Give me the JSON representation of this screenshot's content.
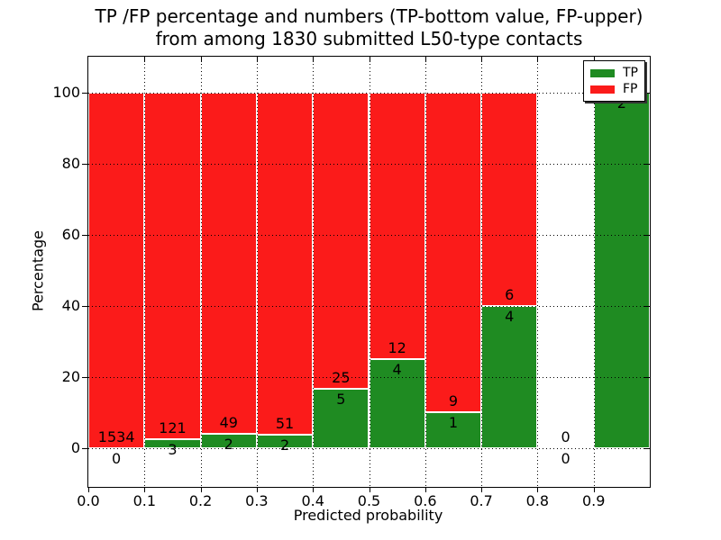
{
  "figure": {
    "title_line1": "TP /FP percentage and numbers (TP-bottom value, FP-upper)",
    "title_line2": "from among 1830 submitted L50-type contacts"
  },
  "chart_data": {
    "type": "bar",
    "stacked": true,
    "title": "TP /FP percentage and numbers (TP-bottom value, FP-upper) from among 1830 submitted L50-type contacts",
    "xlabel": "Predicted probability",
    "ylabel": "Percentage",
    "xlim": [
      0.0,
      1.0
    ],
    "ylim": [
      -11,
      110
    ],
    "grid": true,
    "x_ticks": [
      "0.0",
      "0.1",
      "0.2",
      "0.3",
      "0.4",
      "0.5",
      "0.6",
      "0.7",
      "0.8",
      "0.9"
    ],
    "y_ticks": [
      "0",
      "20",
      "40",
      "60",
      "80",
      "100"
    ],
    "colors": {
      "tp": "#1f8b22",
      "fp": "#fb1b1a"
    },
    "legend": {
      "position": "upper-right",
      "entries": [
        {
          "label": "TP",
          "color": "#1f8b22"
        },
        {
          "label": "FP",
          "color": "#fb1b1a"
        }
      ]
    },
    "bins": [
      {
        "range": [
          0.0,
          0.1
        ],
        "tp_pct": 0,
        "fp_pct": 100,
        "tp_label": "0",
        "fp_label": "1534",
        "empty": false
      },
      {
        "range": [
          0.1,
          0.2
        ],
        "tp_pct": 2.42,
        "fp_pct": 97.58,
        "tp_label": "3",
        "fp_label": "121",
        "empty": false
      },
      {
        "range": [
          0.2,
          0.3
        ],
        "tp_pct": 3.92,
        "fp_pct": 96.08,
        "tp_label": "2",
        "fp_label": "49",
        "empty": false
      },
      {
        "range": [
          0.3,
          0.4
        ],
        "tp_pct": 3.77,
        "fp_pct": 96.23,
        "tp_label": "2",
        "fp_label": "51",
        "empty": false
      },
      {
        "range": [
          0.4,
          0.5
        ],
        "tp_pct": 16.67,
        "fp_pct": 83.33,
        "tp_label": "5",
        "fp_label": "25",
        "empty": false
      },
      {
        "range": [
          0.5,
          0.6
        ],
        "tp_pct": 25,
        "fp_pct": 75,
        "tp_label": "4",
        "fp_label": "12",
        "empty": false
      },
      {
        "range": [
          0.6,
          0.7
        ],
        "tp_pct": 10,
        "fp_pct": 90,
        "tp_label": "1",
        "fp_label": "9",
        "empty": false
      },
      {
        "range": [
          0.7,
          0.8
        ],
        "tp_pct": 40,
        "fp_pct": 60,
        "tp_label": "4",
        "fp_label": "6",
        "empty": false
      },
      {
        "range": [
          0.8,
          0.9
        ],
        "tp_pct": 0,
        "fp_pct": 0,
        "tp_label": "0",
        "fp_label": "0",
        "empty": true
      },
      {
        "range": [
          0.9,
          1.0
        ],
        "tp_pct": 100,
        "fp_pct": 0,
        "tp_label": "2",
        "fp_label": "",
        "empty": false
      }
    ]
  }
}
